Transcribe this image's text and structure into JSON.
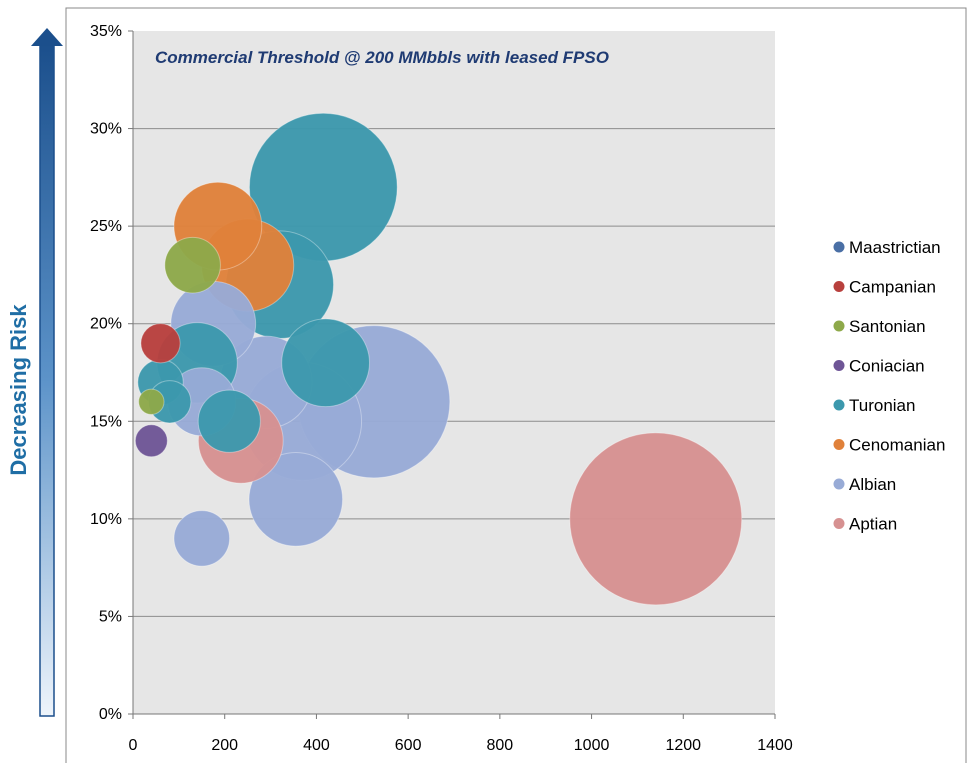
{
  "side_label": "Decreasing Risk",
  "chart_data": {
    "type": "bubble",
    "annotation": "Commercial Threshold @ 200 MMbbls with leased FPSO",
    "xlim": [
      0,
      1400
    ],
    "ylim": [
      0,
      0.35
    ],
    "x_ticks": [
      "0",
      "200",
      "400",
      "600",
      "800",
      "1000",
      "1200",
      "1400"
    ],
    "y_ticks": [
      "0%",
      "5%",
      "10%",
      "15%",
      "20%",
      "25%",
      "30%",
      "35%"
    ],
    "grid": "horizontal",
    "legend_position": "right",
    "colors": {
      "Maastrictian": "#4a6fa5",
      "Campanian": "#b8403d",
      "Santonian": "#8ea94a",
      "Coniacian": "#6e5596",
      "Turonian": "#3c98ad",
      "Cenomanian": "#e0813a",
      "Albian": "#98abd6",
      "Aptian": "#d69191"
    },
    "series": [
      {
        "name": "Maastrictian",
        "points": []
      },
      {
        "name": "Campanian",
        "points": [
          {
            "x": 60,
            "y": 0.19,
            "size": 60
          }
        ]
      },
      {
        "name": "Santonian",
        "points": [
          {
            "x": 40,
            "y": 0.16,
            "size": 25
          },
          {
            "x": 130,
            "y": 0.23,
            "size": 120
          }
        ]
      },
      {
        "name": "Coniacian",
        "points": [
          {
            "x": 40,
            "y": 0.14,
            "size": 40
          }
        ]
      },
      {
        "name": "Turonian",
        "points": [
          {
            "x": 415,
            "y": 0.27,
            "size": 850
          },
          {
            "x": 420,
            "y": 0.18,
            "size": 300
          },
          {
            "x": 320,
            "y": 0.22,
            "size": 450
          },
          {
            "x": 140,
            "y": 0.18,
            "size": 250
          },
          {
            "x": 60,
            "y": 0.17,
            "size": 80
          },
          {
            "x": 80,
            "y": 0.16,
            "size": 70
          },
          {
            "x": 210,
            "y": 0.15,
            "size": 150
          }
        ]
      },
      {
        "name": "Cenomanian",
        "points": [
          {
            "x": 250,
            "y": 0.23,
            "size": 330
          },
          {
            "x": 185,
            "y": 0.25,
            "size": 300
          }
        ]
      },
      {
        "name": "Albian",
        "points": [
          {
            "x": 525,
            "y": 0.16,
            "size": 900
          },
          {
            "x": 370,
            "y": 0.15,
            "size": 540
          },
          {
            "x": 290,
            "y": 0.17,
            "size": 330
          },
          {
            "x": 355,
            "y": 0.11,
            "size": 340
          },
          {
            "x": 150,
            "y": 0.16,
            "size": 180
          },
          {
            "x": 175,
            "y": 0.2,
            "size": 280
          },
          {
            "x": 150,
            "y": 0.09,
            "size": 120
          }
        ]
      },
      {
        "name": "Aptian",
        "points": [
          {
            "x": 1140,
            "y": 0.1,
            "size": 1150
          },
          {
            "x": 235,
            "y": 0.14,
            "size": 280
          }
        ]
      }
    ]
  }
}
